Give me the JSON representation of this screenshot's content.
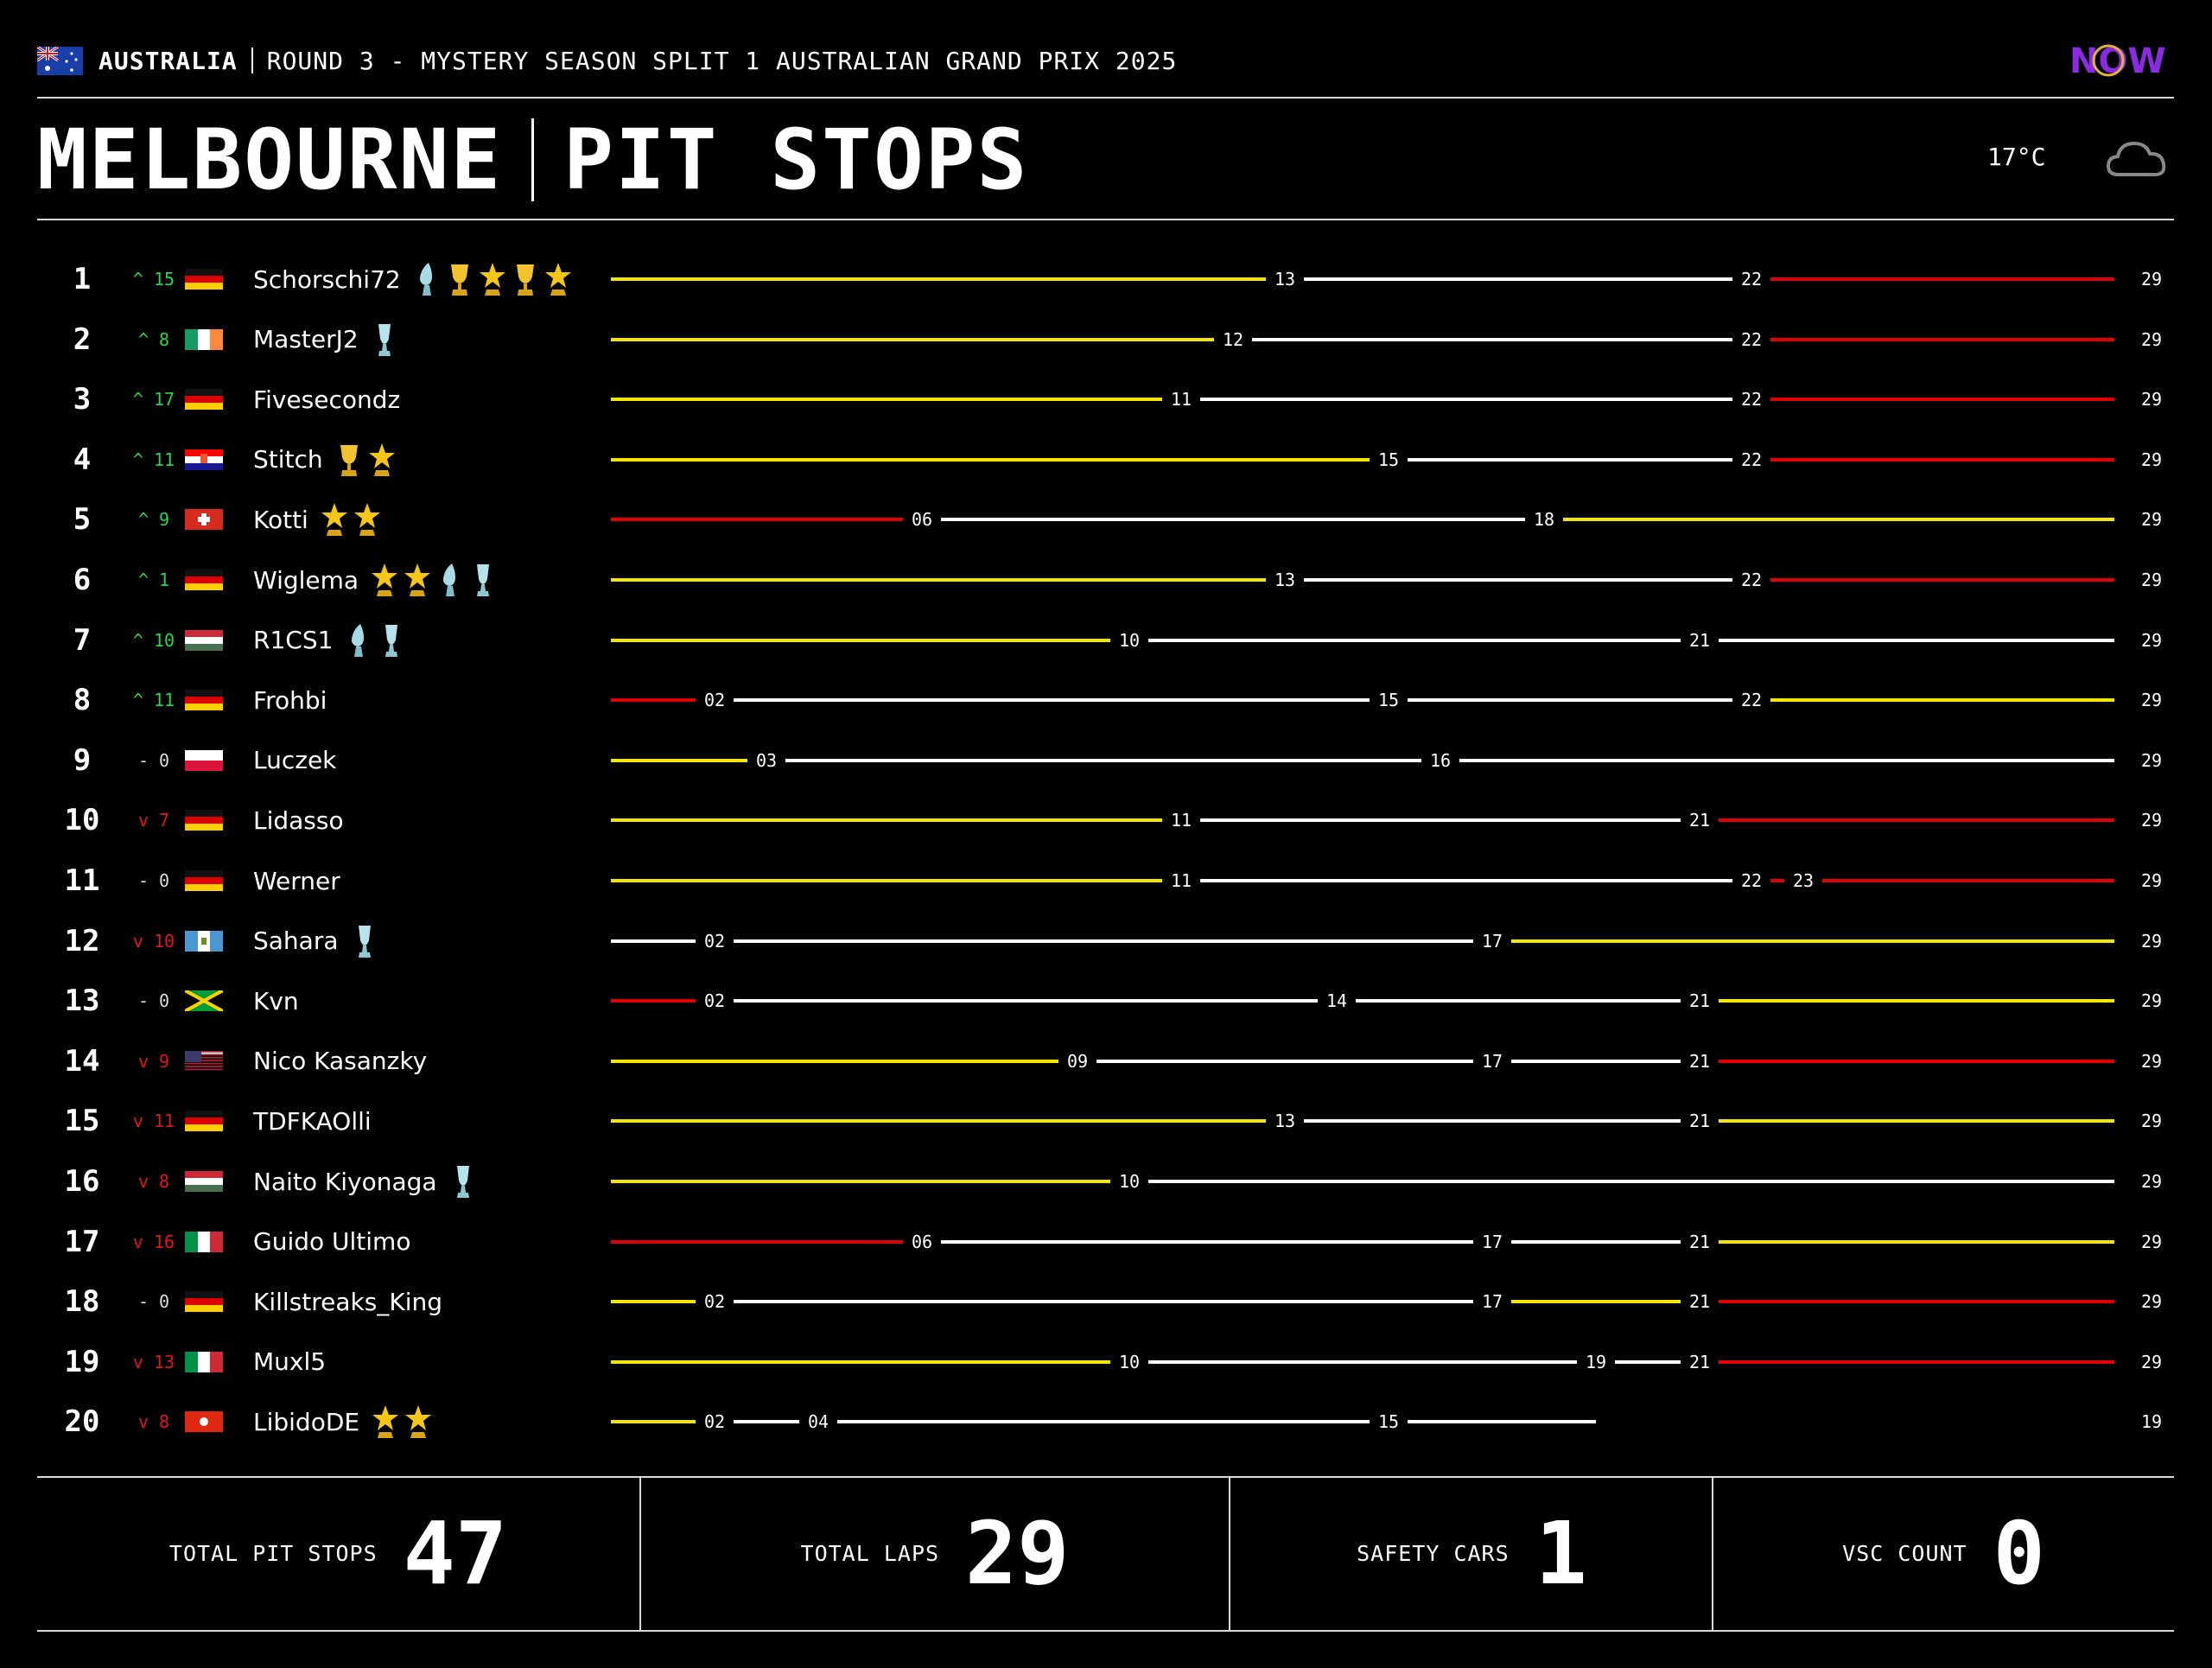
{
  "header": {
    "country": "AUSTRALIA",
    "round_title": "ROUND 3 - MYSTERY SEASON SPLIT 1 AUSTRALIAN GRAND PRIX 2025",
    "logo_text": "NOW",
    "track": "MELBOURNE",
    "page_title": "PIT STOPS",
    "temperature": "17°C",
    "weather_icon": "cloud-icon"
  },
  "colors": {
    "yellow": "#f2e600",
    "white": "#ffffff",
    "red": "#e00000",
    "up": "#2fd34a",
    "down": "#e01818"
  },
  "total_laps_scale": 29,
  "rows": [
    {
      "pos": "1",
      "change": "^ 15",
      "dir": "up",
      "flag": "de",
      "name": "Schorschi72",
      "awards": [
        "blue",
        "gold",
        "star",
        "gold",
        "star"
      ],
      "stints": [
        {
          "to": 13,
          "c": "yellow"
        },
        {
          "to": 22,
          "c": "white"
        },
        {
          "to": 29,
          "c": "red"
        }
      ],
      "end": "29"
    },
    {
      "pos": "2",
      "change": "^ 8",
      "dir": "up",
      "flag": "ie",
      "name": "MasterJ2",
      "awards": [
        "bluecup"
      ],
      "stints": [
        {
          "to": 12,
          "c": "yellow"
        },
        {
          "to": 22,
          "c": "white"
        },
        {
          "to": 29,
          "c": "red"
        }
      ],
      "end": "29"
    },
    {
      "pos": "3",
      "change": "^ 17",
      "dir": "up",
      "flag": "de",
      "name": "Fivesecondz",
      "awards": [],
      "stints": [
        {
          "to": 11,
          "c": "yellow"
        },
        {
          "to": 22,
          "c": "white"
        },
        {
          "to": 29,
          "c": "red"
        }
      ],
      "end": "29"
    },
    {
      "pos": "4",
      "change": "^ 11",
      "dir": "up",
      "flag": "hr",
      "name": "Stitch",
      "awards": [
        "gold",
        "star"
      ],
      "stints": [
        {
          "to": 15,
          "c": "yellow"
        },
        {
          "to": 22,
          "c": "white"
        },
        {
          "to": 29,
          "c": "red"
        }
      ],
      "end": "29"
    },
    {
      "pos": "5",
      "change": "^ 9",
      "dir": "up",
      "flag": "ch",
      "name": "Kotti",
      "awards": [
        "star",
        "star"
      ],
      "stints": [
        {
          "to": 6,
          "c": "red"
        },
        {
          "to": 18,
          "c": "white"
        },
        {
          "to": 29,
          "c": "yellow"
        }
      ],
      "end": "29"
    },
    {
      "pos": "6",
      "change": "^ 1",
      "dir": "up",
      "flag": "de",
      "name": "Wiglema",
      "awards": [
        "star",
        "star",
        "blue",
        "bluecup"
      ],
      "stints": [
        {
          "to": 13,
          "c": "yellow"
        },
        {
          "to": 22,
          "c": "white"
        },
        {
          "to": 29,
          "c": "red"
        }
      ],
      "end": "29"
    },
    {
      "pos": "7",
      "change": "^ 10",
      "dir": "up",
      "flag": "hu",
      "name": "R1CS1",
      "awards": [
        "blue",
        "bluecup"
      ],
      "stints": [
        {
          "to": 10,
          "c": "yellow"
        },
        {
          "to": 21,
          "c": "white"
        },
        {
          "to": 29,
          "c": "white"
        }
      ],
      "end": "29"
    },
    {
      "pos": "8",
      "change": "^ 11",
      "dir": "up",
      "flag": "de",
      "name": "Frohbi",
      "awards": [],
      "stints": [
        {
          "to": 2,
          "c": "red"
        },
        {
          "to": 15,
          "c": "white"
        },
        {
          "to": 22,
          "c": "white"
        },
        {
          "to": 29,
          "c": "yellow"
        }
      ],
      "end": "29"
    },
    {
      "pos": "9",
      "change": "- 0",
      "dir": "same",
      "flag": "pl",
      "name": "Luczek",
      "awards": [],
      "stints": [
        {
          "to": 3,
          "c": "yellow"
        },
        {
          "to": 16,
          "c": "white"
        },
        {
          "to": 29,
          "c": "white"
        }
      ],
      "end": "29"
    },
    {
      "pos": "10",
      "change": "v 7",
      "dir": "down",
      "flag": "de",
      "name": "Lidasso",
      "awards": [],
      "stints": [
        {
          "to": 11,
          "c": "yellow"
        },
        {
          "to": 21,
          "c": "white"
        },
        {
          "to": 29,
          "c": "red"
        }
      ],
      "end": "29"
    },
    {
      "pos": "11",
      "change": "- 0",
      "dir": "same",
      "flag": "de",
      "name": "Werner",
      "awards": [],
      "stints": [
        {
          "to": 11,
          "c": "yellow"
        },
        {
          "to": 22,
          "c": "white"
        },
        {
          "to": 23,
          "c": "red"
        },
        {
          "to": 29,
          "c": "red"
        }
      ],
      "end": "29"
    },
    {
      "pos": "12",
      "change": "v 10",
      "dir": "down",
      "flag": "gt",
      "name": "Sahara",
      "awards": [
        "bluecup"
      ],
      "stints": [
        {
          "to": 2,
          "c": "white"
        },
        {
          "to": 17,
          "c": "white"
        },
        {
          "to": 29,
          "c": "yellow"
        }
      ],
      "end": "29"
    },
    {
      "pos": "13",
      "change": "- 0",
      "dir": "same",
      "flag": "jm",
      "name": "Kvn",
      "awards": [],
      "stints": [
        {
          "to": 2,
          "c": "red"
        },
        {
          "to": 14,
          "c": "white"
        },
        {
          "to": 21,
          "c": "white"
        },
        {
          "to": 29,
          "c": "yellow"
        }
      ],
      "end": "29"
    },
    {
      "pos": "14",
      "change": "v 9",
      "dir": "down",
      "flag": "us",
      "name": "Nico Kasanzky",
      "awards": [],
      "stints": [
        {
          "to": 9,
          "c": "yellow"
        },
        {
          "to": 17,
          "c": "white"
        },
        {
          "to": 21,
          "c": "white"
        },
        {
          "to": 29,
          "c": "red"
        }
      ],
      "end": "29"
    },
    {
      "pos": "15",
      "change": "v 11",
      "dir": "down",
      "flag": "de",
      "name": "TDFKAOlli",
      "awards": [],
      "stints": [
        {
          "to": 13,
          "c": "yellow"
        },
        {
          "to": 21,
          "c": "white"
        },
        {
          "to": 29,
          "c": "yellow"
        }
      ],
      "end": "29"
    },
    {
      "pos": "16",
      "change": "v 8",
      "dir": "down",
      "flag": "hu",
      "name": "Naito Kiyonaga",
      "awards": [
        "bluecup"
      ],
      "stints": [
        {
          "to": 10,
          "c": "yellow"
        },
        {
          "to": 29,
          "c": "white"
        }
      ],
      "end": "29"
    },
    {
      "pos": "17",
      "change": "v 16",
      "dir": "down",
      "flag": "it",
      "name": "Guido Ultimo",
      "awards": [],
      "stints": [
        {
          "to": 6,
          "c": "red"
        },
        {
          "to": 17,
          "c": "white"
        },
        {
          "to": 21,
          "c": "white"
        },
        {
          "to": 29,
          "c": "yellow"
        }
      ],
      "end": "29"
    },
    {
      "pos": "18",
      "change": "- 0",
      "dir": "same",
      "flag": "de",
      "name": "Killstreaks_King",
      "awards": [],
      "stints": [
        {
          "to": 2,
          "c": "yellow"
        },
        {
          "to": 17,
          "c": "white"
        },
        {
          "to": 21,
          "c": "yellow"
        },
        {
          "to": 29,
          "c": "red"
        }
      ],
      "end": "29"
    },
    {
      "pos": "19",
      "change": "v 13",
      "dir": "down",
      "flag": "it",
      "name": "Muxl5",
      "awards": [],
      "stints": [
        {
          "to": 10,
          "c": "yellow"
        },
        {
          "to": 19,
          "c": "white"
        },
        {
          "to": 21,
          "c": "white"
        },
        {
          "to": 29,
          "c": "red"
        }
      ],
      "end": "29"
    },
    {
      "pos": "20",
      "change": "v 8",
      "dir": "down",
      "flag": "hk",
      "name": "LibidoDE",
      "awards": [
        "star",
        "star"
      ],
      "stints": [
        {
          "to": 2,
          "c": "yellow"
        },
        {
          "to": 4,
          "c": "white"
        },
        {
          "to": 15,
          "c": "white"
        },
        {
          "to": 19,
          "c": "white"
        }
      ],
      "end": "19"
    }
  ],
  "stats": {
    "pit_label": "TOTAL PIT STOPS",
    "pit_value": "47",
    "laps_label": "TOTAL LAPS",
    "laps_value": "29",
    "sc_label": "SAFETY CARS",
    "sc_value": "1",
    "vsc_label": "VSC COUNT",
    "vsc_value": "0"
  }
}
